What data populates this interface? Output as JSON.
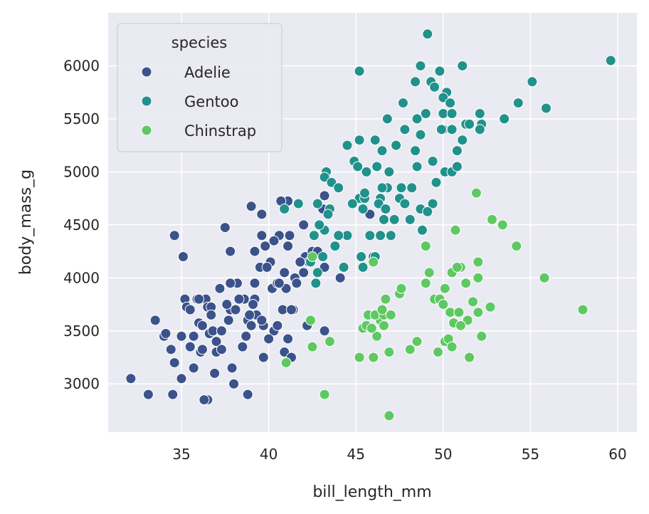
{
  "chart_data": {
    "type": "scatter",
    "title": "",
    "xlabel": "bill_length_mm",
    "ylabel": "body_mass_g",
    "xlim": [
      30.8,
      61.1
    ],
    "ylim": [
      2545,
      6500
    ],
    "xticks": [
      35,
      40,
      45,
      50,
      55,
      60
    ],
    "yticks": [
      3000,
      3500,
      4000,
      4500,
      5000,
      5500,
      6000
    ],
    "grid": true,
    "legend": {
      "title": "species",
      "placement": "top-left"
    },
    "series": [
      {
        "name": "Adelie",
        "color": "#3b528b",
        "points": [
          [
            32.1,
            3050
          ],
          [
            33.1,
            2900
          ],
          [
            34.5,
            2900
          ],
          [
            36.5,
            2850
          ],
          [
            38.8,
            2900
          ],
          [
            36.1,
            3300
          ],
          [
            33.5,
            3600
          ],
          [
            34.0,
            3450
          ],
          [
            34.1,
            3475
          ],
          [
            34.4,
            3325
          ],
          [
            34.6,
            3200
          ],
          [
            35.0,
            3050
          ],
          [
            35.1,
            4200
          ],
          [
            34.6,
            4400
          ],
          [
            35.0,
            3450
          ],
          [
            35.2,
            3800
          ],
          [
            35.3,
            3725
          ],
          [
            35.5,
            3700
          ],
          [
            35.7,
            3450
          ],
          [
            35.9,
            3800
          ],
          [
            36.0,
            3575
          ],
          [
            36.2,
            3550
          ],
          [
            36.2,
            3325
          ],
          [
            36.4,
            3800
          ],
          [
            36.5,
            3725
          ],
          [
            36.6,
            3475
          ],
          [
            36.7,
            3725
          ],
          [
            36.8,
            3500
          ],
          [
            37.0,
            3400
          ],
          [
            37.2,
            3900
          ],
          [
            37.3,
            3500
          ],
          [
            37.5,
            4475
          ],
          [
            37.7,
            3600
          ],
          [
            37.8,
            4250
          ],
          [
            37.8,
            3700
          ],
          [
            37.9,
            3150
          ],
          [
            38.0,
            3000
          ],
          [
            38.1,
            3700
          ],
          [
            38.2,
            3950
          ],
          [
            38.6,
            3800
          ],
          [
            38.7,
            3450
          ],
          [
            38.8,
            3600
          ],
          [
            39.0,
            3550
          ],
          [
            39.2,
            4250
          ],
          [
            39.2,
            3800
          ],
          [
            39.3,
            3650
          ],
          [
            39.5,
            4100
          ],
          [
            39.6,
            4600
          ],
          [
            39.7,
            3550
          ],
          [
            39.0,
            4675
          ],
          [
            39.6,
            4400
          ],
          [
            39.8,
            4300
          ],
          [
            40.1,
            4150
          ],
          [
            40.2,
            3900
          ],
          [
            40.3,
            3500
          ],
          [
            40.5,
            3950
          ],
          [
            40.6,
            4400
          ],
          [
            40.8,
            3700
          ],
          [
            40.9,
            3300
          ],
          [
            41.1,
            4725
          ],
          [
            41.1,
            4300
          ],
          [
            41.4,
            3700
          ],
          [
            41.5,
            4000
          ],
          [
            42.0,
            4050
          ],
          [
            42.1,
            4200
          ],
          [
            42.2,
            3550
          ],
          [
            42.3,
            4150
          ],
          [
            42.5,
            4250
          ],
          [
            42.8,
            4250
          ],
          [
            43.2,
            4775
          ],
          [
            43.1,
            4650
          ],
          [
            43.2,
            4450
          ],
          [
            44.1,
            4000
          ],
          [
            45.8,
            4600
          ],
          [
            46.0,
            4200
          ],
          [
            40.7,
            4725
          ],
          [
            40.0,
            3425
          ],
          [
            41.3,
            3250
          ],
          [
            38.9,
            3650
          ],
          [
            37.0,
            3300
          ],
          [
            36.3,
            2850
          ],
          [
            35.7,
            3150
          ],
          [
            36.7,
            3650
          ],
          [
            41.0,
            3900
          ],
          [
            40.5,
            3550
          ],
          [
            39.7,
            3250
          ],
          [
            41.1,
            3425
          ],
          [
            39.2,
            3950
          ],
          [
            38.3,
            3800
          ],
          [
            37.6,
            3750
          ],
          [
            38.5,
            3350
          ],
          [
            37.3,
            3325
          ],
          [
            36.9,
            3100
          ],
          [
            39.9,
            4100
          ],
          [
            40.9,
            4050
          ],
          [
            41.8,
            4150
          ],
          [
            42.0,
            4500
          ],
          [
            43.2,
            4100
          ],
          [
            40.6,
            3950
          ],
          [
            39.6,
            3600
          ],
          [
            40.3,
            4350
          ],
          [
            41.2,
            4400
          ],
          [
            36.0,
            3800
          ],
          [
            35.5,
            3350
          ],
          [
            39.1,
            3750
          ],
          [
            37.8,
            3950
          ],
          [
            43.2,
            3500
          ],
          [
            41.6,
            3950
          ],
          [
            41.3,
            3700
          ]
        ]
      },
      {
        "name": "Gentoo",
        "color": "#21918c",
        "points": [
          [
            49.1,
            6300
          ],
          [
            59.6,
            6050
          ],
          [
            45.2,
            5950
          ],
          [
            48.7,
            6000
          ],
          [
            51.1,
            6000
          ],
          [
            49.8,
            5950
          ],
          [
            55.1,
            5850
          ],
          [
            48.4,
            5850
          ],
          [
            49.3,
            5850
          ],
          [
            50.2,
            5750
          ],
          [
            54.3,
            5650
          ],
          [
            55.9,
            5600
          ],
          [
            47.7,
            5650
          ],
          [
            49.5,
            5800
          ],
          [
            50.0,
            5700
          ],
          [
            50.4,
            5650
          ],
          [
            48.5,
            5500
          ],
          [
            49.0,
            5550
          ],
          [
            50.0,
            5550
          ],
          [
            50.5,
            5550
          ],
          [
            51.3,
            5450
          ],
          [
            52.1,
            5550
          ],
          [
            52.2,
            5450
          ],
          [
            53.5,
            5500
          ],
          [
            46.8,
            5500
          ],
          [
            47.8,
            5400
          ],
          [
            48.7,
            5350
          ],
          [
            50.0,
            5400
          ],
          [
            50.5,
            5400
          ],
          [
            51.1,
            5300
          ],
          [
            50.8,
            5200
          ],
          [
            52.1,
            5400
          ],
          [
            46.1,
            5300
          ],
          [
            45.2,
            5300
          ],
          [
            44.5,
            5250
          ],
          [
            47.3,
            5250
          ],
          [
            46.5,
            5200
          ],
          [
            48.4,
            5200
          ],
          [
            49.4,
            5100
          ],
          [
            44.9,
            5100
          ],
          [
            45.6,
            5000
          ],
          [
            46.2,
            5050
          ],
          [
            46.9,
            5000
          ],
          [
            45.1,
            5050
          ],
          [
            43.3,
            5000
          ],
          [
            43.2,
            4950
          ],
          [
            43.6,
            4900
          ],
          [
            46.8,
            4850
          ],
          [
            48.2,
            4850
          ],
          [
            49.6,
            4900
          ],
          [
            47.5,
            4750
          ],
          [
            46.4,
            4750
          ],
          [
            45.2,
            4750
          ],
          [
            44.0,
            4850
          ],
          [
            42.8,
            4700
          ],
          [
            43.5,
            4650
          ],
          [
            43.4,
            4600
          ],
          [
            45.5,
            4750
          ],
          [
            46.6,
            4550
          ],
          [
            47.2,
            4550
          ],
          [
            48.1,
            4550
          ],
          [
            48.7,
            4650
          ],
          [
            49.4,
            4700
          ],
          [
            50.1,
            5000
          ],
          [
            50.5,
            5000
          ],
          [
            44.8,
            4700
          ],
          [
            45.4,
            4650
          ],
          [
            47.8,
            4700
          ],
          [
            49.1,
            4625
          ],
          [
            48.8,
            4450
          ],
          [
            44.5,
            4400
          ],
          [
            45.8,
            4400
          ],
          [
            45.3,
            4200
          ],
          [
            46.1,
            4200
          ],
          [
            46.4,
            4400
          ],
          [
            44.0,
            4400
          ],
          [
            43.2,
            4450
          ],
          [
            43.8,
            4300
          ],
          [
            44.3,
            4100
          ],
          [
            47.0,
            4400
          ],
          [
            41.7,
            4700
          ],
          [
            40.9,
            4650
          ],
          [
            42.9,
            4500
          ],
          [
            42.6,
            4400
          ],
          [
            43.1,
            4200
          ],
          [
            42.4,
            4150
          ],
          [
            42.8,
            4050
          ],
          [
            42.7,
            3950
          ],
          [
            45.4,
            4100
          ],
          [
            49.9,
            5400
          ],
          [
            51.5,
            5450
          ],
          [
            45.5,
            4800
          ],
          [
            46.3,
            4700
          ],
          [
            50.8,
            5050
          ],
          [
            46.7,
            4650
          ],
          [
            47.6,
            4850
          ],
          [
            48.5,
            5050
          ],
          [
            46.5,
            4850
          ]
        ]
      },
      {
        "name": "Chinstrap",
        "color": "#5ec962",
        "points": [
          [
            46.9,
            2700
          ],
          [
            43.2,
            2900
          ],
          [
            45.2,
            3250
          ],
          [
            46.0,
            3250
          ],
          [
            46.9,
            3300
          ],
          [
            48.1,
            3325
          ],
          [
            48.5,
            3400
          ],
          [
            49.7,
            3300
          ],
          [
            50.1,
            3400
          ],
          [
            51.5,
            3250
          ],
          [
            50.3,
            3425
          ],
          [
            42.4,
            3600
          ],
          [
            42.5,
            3350
          ],
          [
            43.5,
            3400
          ],
          [
            45.4,
            3525
          ],
          [
            45.6,
            3550
          ],
          [
            46.4,
            3600
          ],
          [
            46.2,
            3450
          ],
          [
            46.6,
            3550
          ],
          [
            45.7,
            3650
          ],
          [
            46.1,
            3650
          ],
          [
            46.6,
            3650
          ],
          [
            47.0,
            3650
          ],
          [
            46.7,
            3800
          ],
          [
            47.5,
            3850
          ],
          [
            47.6,
            3900
          ],
          [
            49.0,
            3950
          ],
          [
            49.2,
            4050
          ],
          [
            49.5,
            3800
          ],
          [
            49.8,
            3800
          ],
          [
            50.0,
            3750
          ],
          [
            50.1,
            3900
          ],
          [
            50.4,
            3675
          ],
          [
            50.6,
            3575
          ],
          [
            50.9,
            3675
          ],
          [
            51.0,
            4100
          ],
          [
            50.5,
            4050
          ],
          [
            50.8,
            4100
          ],
          [
            51.3,
            3950
          ],
          [
            51.4,
            3600
          ],
          [
            51.7,
            3775
          ],
          [
            52.0,
            3675
          ],
          [
            52.0,
            4000
          ],
          [
            52.0,
            4150
          ],
          [
            52.2,
            3450
          ],
          [
            52.7,
            3725
          ],
          [
            52.8,
            4550
          ],
          [
            53.4,
            4500
          ],
          [
            54.2,
            4300
          ],
          [
            55.8,
            4000
          ],
          [
            58.0,
            3700
          ],
          [
            51.9,
            4800
          ],
          [
            50.7,
            4450
          ],
          [
            49.0,
            4300
          ],
          [
            46.0,
            4150
          ],
          [
            46.5,
            3700
          ],
          [
            45.9,
            3525
          ],
          [
            50.5,
            3350
          ],
          [
            51.0,
            3550
          ],
          [
            41.0,
            3200
          ],
          [
            42.5,
            4200
          ]
        ]
      }
    ]
  }
}
